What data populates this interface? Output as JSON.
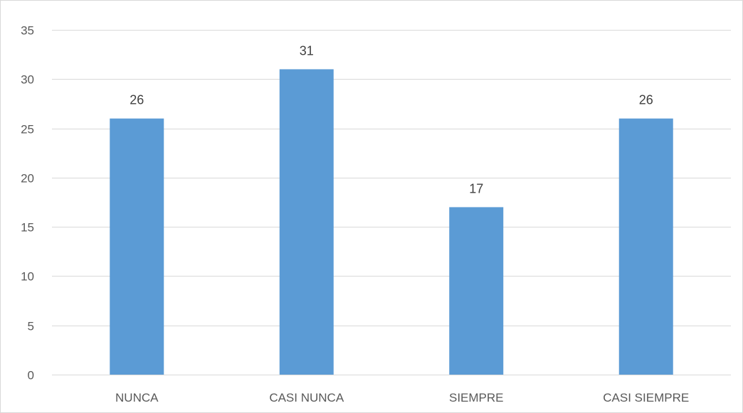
{
  "chart_data": {
    "type": "bar",
    "categories": [
      "NUNCA",
      "CASI NUNCA",
      "SIEMPRE",
      "CASI SIEMPRE"
    ],
    "values": [
      26,
      31,
      17,
      26
    ],
    "data_labels": [
      "26",
      "31",
      "17",
      "26"
    ],
    "title": "",
    "xlabel": "",
    "ylabel": "",
    "ylim": [
      0,
      35
    ],
    "yticks": [
      0,
      5,
      10,
      15,
      20,
      25,
      30,
      35
    ],
    "ytick_labels": [
      "0",
      "5",
      "10",
      "15",
      "20",
      "25",
      "30",
      "35"
    ],
    "grid": true,
    "legend": "none",
    "colors": {
      "bar": "#5b9bd5",
      "gridline": "#d9d9d9",
      "axis": "#d9d9d9"
    }
  }
}
